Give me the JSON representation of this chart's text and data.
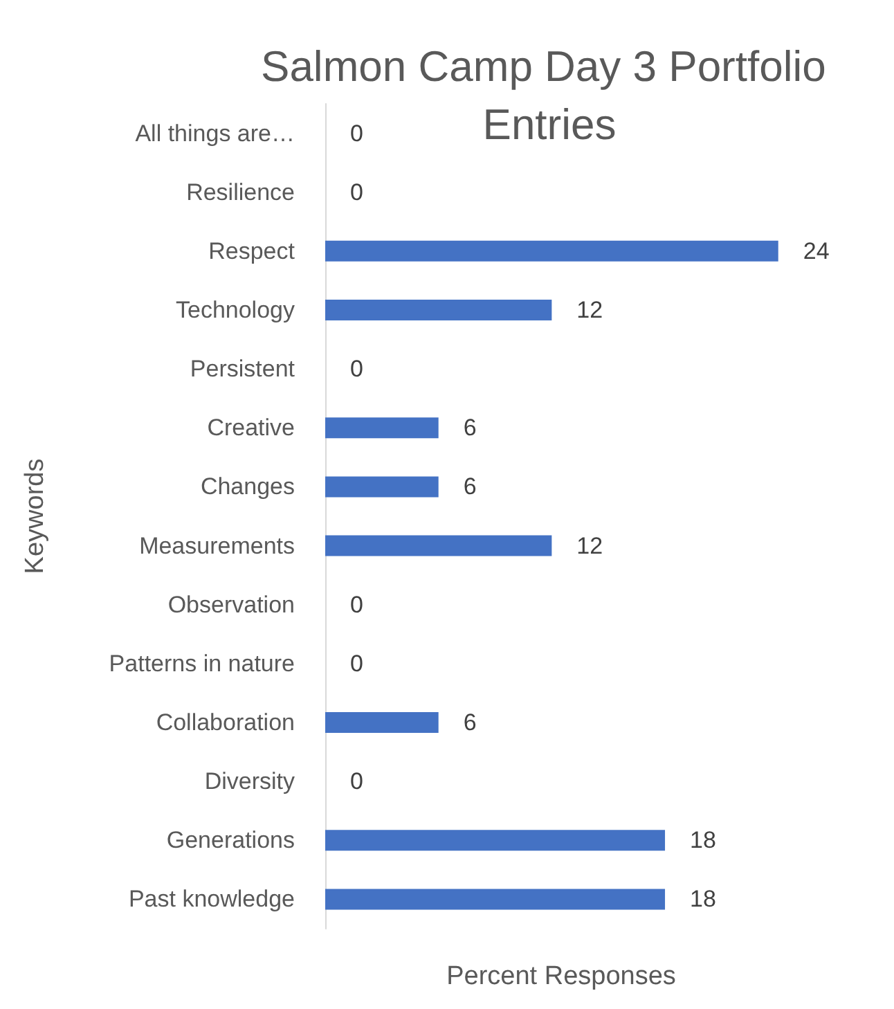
{
  "chart_data": {
    "type": "bar",
    "orientation": "horizontal",
    "title": "Salmon Camp Day 3 Portfolio Entries",
    "xlabel": "Percent Responses",
    "ylabel": "Keywords",
    "categories": [
      "All things are…",
      "Resilience",
      "Respect",
      "Technology",
      "Persistent",
      "Creative",
      "Changes",
      "Measurements",
      "Observation",
      "Patterns in nature",
      "Collaboration",
      "Diversity",
      "Generations",
      "Past knowledge"
    ],
    "values": [
      0,
      0,
      24,
      12,
      0,
      6,
      6,
      12,
      0,
      0,
      6,
      0,
      18,
      18
    ],
    "color": "#4472c4",
    "data_labels": true
  }
}
